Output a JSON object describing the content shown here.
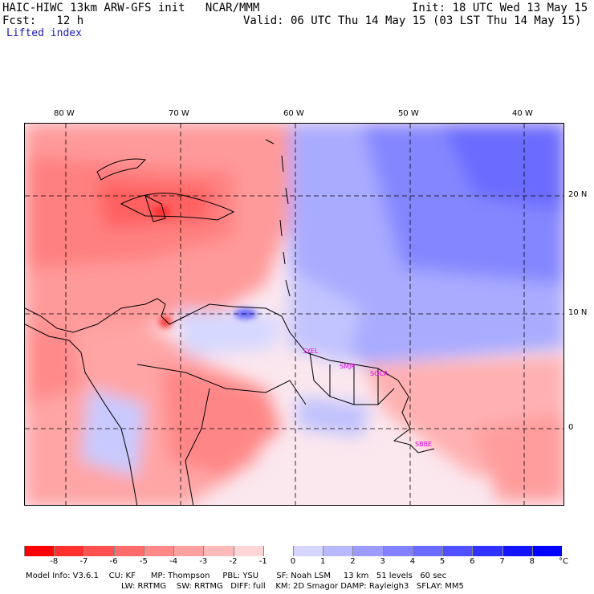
{
  "header": {
    "title": "HAIC-HIWC 13km ARW-GFS init   NCAR/MMM",
    "init": "Init: 18 UTC Wed 13 May 15",
    "fcst": "Fcst:   12 h",
    "valid": "Valid: 06 UTC Thu 14 May 15 (03 LST Thu 14 May 15)",
    "field": "Lifted index"
  },
  "map": {
    "lon_labels": [
      "80 W",
      "70 W",
      "60 W",
      "50 W",
      "40 W"
    ],
    "lat_labels": [
      "20 N",
      "10 N",
      "0"
    ],
    "cities": [
      "SYEL",
      "SMJP",
      "SOCA",
      "SBBE"
    ]
  },
  "colorbar": {
    "ticks": [
      "-8",
      "-7",
      "-6",
      "-5",
      "-4",
      "-3",
      "-2",
      "-1",
      "0",
      "1",
      "2",
      "3",
      "4",
      "5",
      "6",
      "7",
      "8"
    ],
    "unit": "°C",
    "colors": [
      "#ff0000",
      "#ff3030",
      "#ff5050",
      "#ff6a6a",
      "#ff8888",
      "#ffa0a0",
      "#ffbaba",
      "#ffd6d6",
      "#ffffff",
      "#d6d6ff",
      "#b8b8ff",
      "#9c9cff",
      "#8282ff",
      "#6a6aff",
      "#5050ff",
      "#3232ff",
      "#1414ff",
      "#0000ff"
    ]
  },
  "footer": {
    "line1": "Model Info: V3.6.1    CU: KF      MP: Thompson     PBL: YSU       SF: Noah LSM     13 km   51 levels   60 sec",
    "line2": "LW: RRTMG    SW: RRTMG   DIFF: full    KM: 2D Smagor DAMP: Rayleigh3   SFLAY: MM5"
  }
}
